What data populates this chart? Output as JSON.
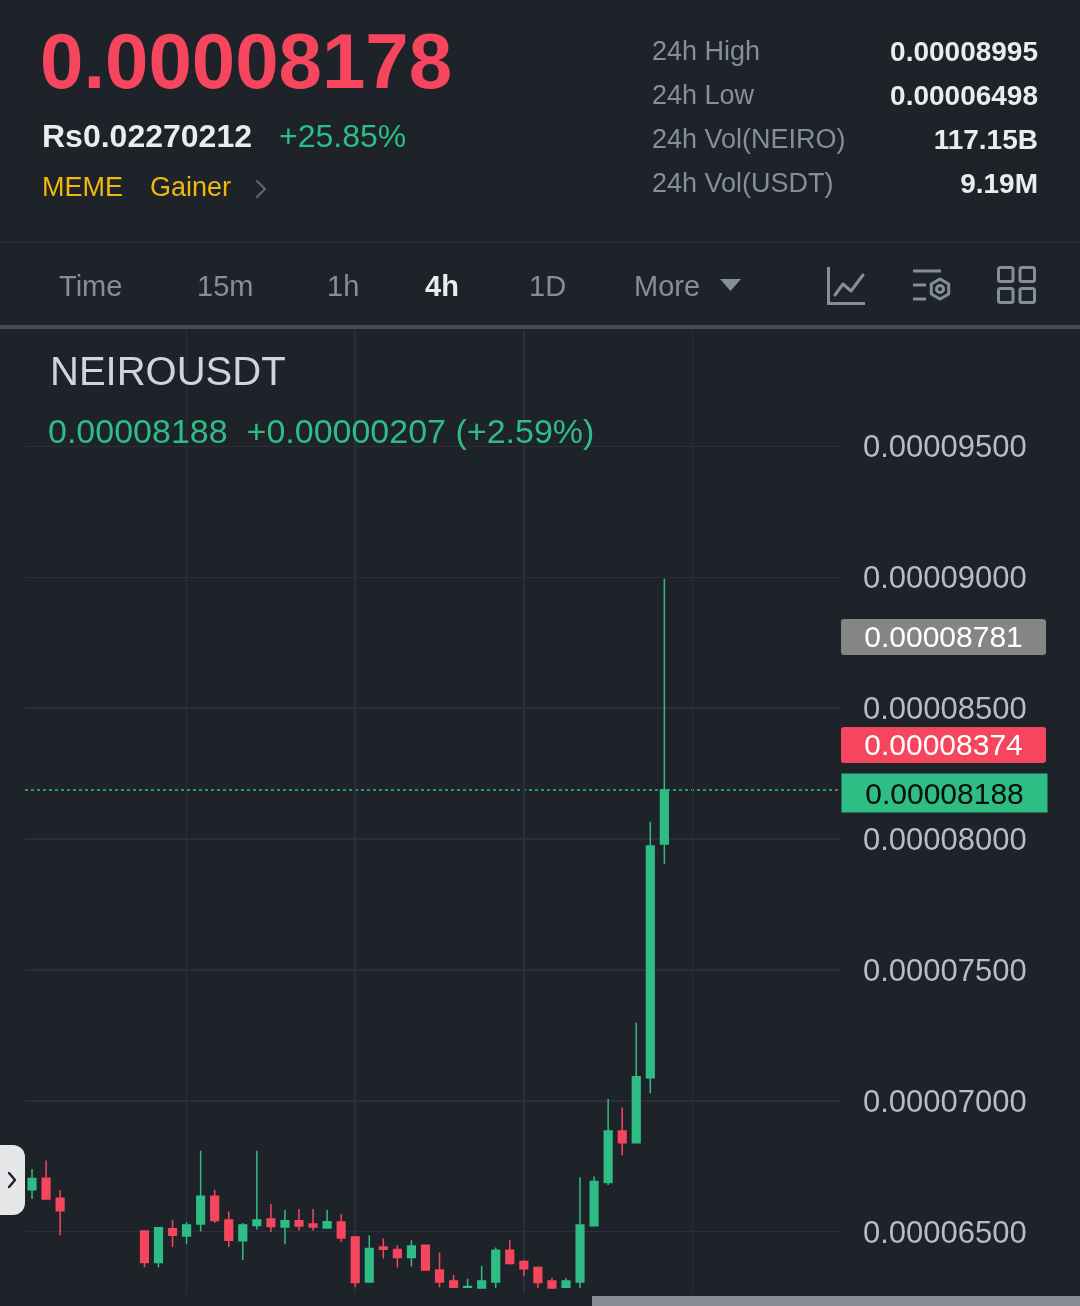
{
  "chart_data": {
    "type": "candlestick",
    "title": "NEIROUSDT",
    "subtitle": "0.00008188  +0.00000207 (+2.59%)",
    "categories": [
      null,
      null,
      null,
      null,
      null,
      null,
      null,
      null,
      null,
      null,
      null,
      null,
      null,
      null,
      null,
      null,
      null,
      null,
      null,
      null,
      null,
      null,
      null,
      null,
      null,
      null,
      null,
      null,
      null,
      null,
      null,
      null,
      null,
      null,
      null,
      null,
      null,
      null,
      null,
      null,
      null,
      null,
      null,
      null,
      null,
      null,
      null,
      null,
      null,
      null,
      null,
      null,
      null,
      null,
      null,
      null,
      null,
      null
    ],
    "ohlc": [
      [
        6.66e-05,
        6.74e-05,
        6.625e-05,
        6.703e-05
      ],
      [
        6.704e-05,
        6.772e-05,
        6.625e-05,
        6.625e-05
      ],
      [
        6.628e-05,
        6.658e-05,
        6.486e-05,
        6.58e-05
      ],
      null,
      null,
      null,
      null,
      null,
      [
        6.503e-05,
        6.504e-05,
        6.364e-05,
        6.382e-05
      ],
      [
        6.382e-05,
        6.515e-05,
        6.364e-05,
        6.515e-05
      ],
      [
        6.511e-05,
        6.545e-05,
        6.442e-05,
        6.486e-05
      ],
      [
        6.484e-05,
        6.537e-05,
        6.452e-05,
        6.526e-05
      ],
      [
        6.529e-05,
        6.809e-05,
        6.501e-05,
        6.635e-05
      ],
      [
        6.635e-05,
        6.66e-05,
        6.533e-05,
        6.543e-05
      ],
      [
        6.545e-05,
        6.577e-05,
        6.442e-05,
        6.467e-05
      ],
      [
        6.465e-05,
        6.533e-05,
        6.392e-05,
        6.526e-05
      ],
      [
        6.524e-05,
        6.809e-05,
        6.508e-05,
        6.545e-05
      ],
      [
        6.549e-05,
        6.606e-05,
        6.499e-05,
        6.52e-05
      ],
      [
        6.518e-05,
        6.583e-05,
        6.452e-05,
        6.542e-05
      ],
      [
        6.542e-05,
        6.587e-05,
        6.505e-05,
        6.522e-05
      ],
      [
        6.529e-05,
        6.587e-05,
        6.505e-05,
        6.518e-05
      ],
      [
        6.514e-05,
        6.583e-05,
        6.511e-05,
        6.538e-05
      ],
      [
        6.537e-05,
        6.568e-05,
        6.461e-05,
        6.476e-05
      ],
      [
        6.48e-05,
        6.484e-05,
        6.288e-05,
        6.306e-05
      ],
      [
        6.308e-05,
        6.486e-05,
        6.308e-05,
        6.436e-05
      ],
      [
        6.442e-05,
        6.474e-05,
        6.398e-05,
        6.433e-05
      ],
      [
        6.432e-05,
        6.448e-05,
        6.363e-05,
        6.401e-05
      ],
      [
        6.401e-05,
        6.467e-05,
        6.367e-05,
        6.445e-05
      ],
      [
        6.448e-05,
        6.448e-05,
        6.354e-05,
        6.354e-05
      ],
      [
        6.354e-05,
        6.421e-05,
        6.288e-05,
        6.308e-05
      ],
      [
        6.312e-05,
        6.335e-05,
        6.288e-05,
        6.288e-05
      ],
      [
        6.288e-05,
        6.32e-05,
        6.288e-05,
        6.291e-05
      ],
      [
        6.285e-05,
        6.369e-05,
        6.285e-05,
        6.312e-05
      ],
      [
        6.308e-05,
        6.44e-05,
        6.285e-05,
        6.429e-05
      ],
      [
        6.429e-05,
        6.467e-05,
        6.375e-05,
        6.379e-05
      ],
      [
        6.386e-05,
        6.392e-05,
        6.331e-05,
        6.358e-05
      ],
      [
        6.363e-05,
        6.367e-05,
        6.285e-05,
        6.306e-05
      ],
      [
        6.312e-05,
        6.323e-05,
        6.285e-05,
        6.285e-05
      ],
      [
        6.288e-05,
        6.323e-05,
        6.285e-05,
        6.312e-05
      ],
      [
        6.308e-05,
        6.708e-05,
        6.285e-05,
        6.526e-05
      ],
      [
        6.523e-05,
        6.711e-05,
        6.523e-05,
        6.692e-05
      ],
      [
        6.688e-05,
        7.007e-05,
        6.678e-05,
        6.885e-05
      ],
      [
        6.885e-05,
        6.975e-05,
        6.792e-05,
        6.84e-05
      ],
      [
        6.84e-05,
        7.298e-05,
        6.84e-05,
        7.092e-05
      ],
      [
        7.088e-05,
        8.066e-05,
        7.029e-05,
        7.974e-05
      ],
      [
        7.981e-05,
        8.995e-05,
        7.906e-05,
        8.188e-05
      ],
      null,
      null,
      null,
      null,
      null,
      null,
      null,
      null,
      null,
      null,
      null,
      null
    ],
    "colors": [
      "#2ebd85",
      "#f6465d",
      "#f6465d",
      null,
      null,
      null,
      null,
      null,
      "#f6465d",
      "#2ebd85",
      "#f6465d",
      "#2ebd85",
      "#2ebd85",
      "#f6465d",
      "#f6465d",
      "#2ebd85",
      "#2ebd85",
      "#f6465d",
      "#2ebd85",
      "#f6465d",
      "#f6465d",
      "#2ebd85",
      "#f6465d",
      "#f6465d",
      "#2ebd85",
      "#f6465d",
      "#f6465d",
      "#2ebd85",
      "#f6465d",
      "#f6465d",
      "#f6465d",
      "#2ebd85",
      "#2ebd85",
      "#2ebd85",
      "#f6465d",
      "#f6465d",
      "#f6465d",
      "#f6465d",
      "#2ebd85",
      "#2ebd85",
      "#2ebd85",
      "#2ebd85",
      "#f6465d",
      "#2ebd85",
      "#2ebd85",
      "#2ebd85",
      null,
      null,
      null,
      null,
      null,
      null,
      null,
      null,
      null,
      null,
      null,
      null
    ],
    "ylim": [
      6.262e-05,
      9.945e-05
    ],
    "yticks": [
      {
        "value": 6.5e-05,
        "label": "0.00006500"
      },
      {
        "value": 7e-05,
        "label": "0.00007000"
      },
      {
        "value": 7.5e-05,
        "label": "0.00007500"
      },
      {
        "value": 8e-05,
        "label": "0.00008000"
      },
      {
        "value": 8.5e-05,
        "label": "0.00008500"
      },
      {
        "value": 9e-05,
        "label": "0.00009000"
      },
      {
        "value": 9.5e-05,
        "label": "0.00009500"
      }
    ],
    "grid": true,
    "tick_labels": "y",
    "ref_lines": [
      {
        "axis": "y",
        "value": 8.188e-05,
        "label": "0.00008188",
        "color": "#2ebd85",
        "line_style": "dotted"
      }
    ],
    "annotations": [
      "0.00008178",
      "Rs0.02270212",
      "+25.85%",
      "MEME",
      "Gainer",
      "24h High",
      "0.00008995",
      "24h Low",
      "0.00006498",
      "24h Vol(NEIRO)",
      "117.15B",
      "24h Vol(USDT)",
      "9.19M",
      "Time",
      "15m",
      "1h",
      "4h",
      "1D",
      "More",
      "0.00008781",
      "0.00008374"
    ]
  }
}
